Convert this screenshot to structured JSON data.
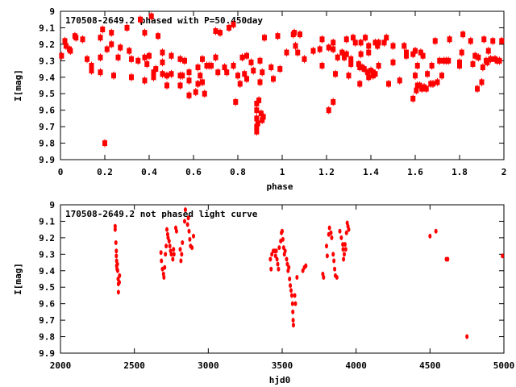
{
  "colors": {
    "marker": "#ff0000",
    "axis": "#000000"
  },
  "chart_data": [
    {
      "type": "scatter",
      "title": "170508-2649.2 phased with P=50.450day",
      "xlabel": "phase",
      "ylabel": "I[mag]",
      "xlim": [
        0,
        2
      ],
      "ylim": [
        9,
        9.9
      ],
      "y_inverted": true,
      "grid": false,
      "xticks": [
        "0",
        "0.2",
        "0.4",
        "0.6",
        "0.8",
        "1",
        "1.2",
        "1.4",
        "1.6",
        "1.8",
        "2"
      ],
      "yticks": [
        "9",
        "9.1",
        "9.2",
        "9.3",
        "9.4",
        "9.5",
        "9.6",
        "9.7",
        "9.8",
        "9.9"
      ],
      "points": [
        [
          0.005,
          9.27
        ],
        [
          0.02,
          9.18
        ],
        [
          0.025,
          9.21
        ],
        [
          0.04,
          9.23
        ],
        [
          0.045,
          9.24
        ],
        [
          0.065,
          9.15
        ],
        [
          0.07,
          9.16
        ],
        [
          0.1,
          9.17
        ],
        [
          0.12,
          9.29
        ],
        [
          0.14,
          9.33
        ],
        [
          0.14,
          9.36
        ],
        [
          0.18,
          9.28
        ],
        [
          0.18,
          9.16
        ],
        [
          0.18,
          9.37
        ],
        [
          0.19,
          9.11
        ],
        [
          0.2,
          9.8
        ],
        [
          0.21,
          9.23
        ],
        [
          0.23,
          9.13
        ],
        [
          0.23,
          9.2
        ],
        [
          0.24,
          9.39
        ],
        [
          0.26,
          9.28
        ],
        [
          0.27,
          9.22
        ],
        [
          0.3,
          9.1
        ],
        [
          0.31,
          9.24
        ],
        [
          0.32,
          9.4
        ],
        [
          0.32,
          9.29
        ],
        [
          0.35,
          9.3
        ],
        [
          0.36,
          9.05
        ],
        [
          0.38,
          9.42
        ],
        [
          0.38,
          9.28
        ],
        [
          0.38,
          9.13
        ],
        [
          0.39,
          9.32
        ],
        [
          0.4,
          9.27
        ],
        [
          0.41,
          9.03
        ],
        [
          0.42,
          9.37
        ],
        [
          0.42,
          9.4
        ],
        [
          0.43,
          9.35
        ],
        [
          0.44,
          9.15
        ],
        [
          0.46,
          9.31
        ],
        [
          0.46,
          9.25
        ],
        [
          0.46,
          9.38
        ],
        [
          0.48,
          9.39
        ],
        [
          0.48,
          9.45
        ],
        [
          0.5,
          9.27
        ],
        [
          0.5,
          9.38
        ],
        [
          0.54,
          9.29
        ],
        [
          0.54,
          9.39
        ],
        [
          0.54,
          9.45
        ],
        [
          0.55,
          9.39
        ],
        [
          0.56,
          9.3
        ],
        [
          0.58,
          9.37
        ],
        [
          0.58,
          9.51
        ],
        [
          0.58,
          9.42
        ],
        [
          0.61,
          9.49
        ],
        [
          0.62,
          9.34
        ],
        [
          0.62,
          9.44
        ],
        [
          0.63,
          9.39
        ],
        [
          0.64,
          9.29
        ],
        [
          0.64,
          9.43
        ],
        [
          0.65,
          9.5
        ],
        [
          0.66,
          9.33
        ],
        [
          0.67,
          9.33
        ],
        [
          0.68,
          9.33
        ],
        [
          0.7,
          9.12
        ],
        [
          0.7,
          9.28
        ],
        [
          0.71,
          9.37
        ],
        [
          0.72,
          9.13
        ],
        [
          0.74,
          9.34
        ],
        [
          0.75,
          9.37
        ],
        [
          0.76,
          9.1
        ],
        [
          0.78,
          9.33
        ],
        [
          0.78,
          9.08
        ],
        [
          0.79,
          9.55
        ],
        [
          0.8,
          9.39
        ],
        [
          0.81,
          9.44
        ],
        [
          0.82,
          9.28
        ],
        [
          0.83,
          9.38
        ],
        [
          0.84,
          9.27
        ],
        [
          0.84,
          9.41
        ],
        [
          0.86,
          9.31
        ],
        [
          0.87,
          9.36
        ],
        [
          0.885,
          9.56
        ],
        [
          0.885,
          9.6
        ],
        [
          0.885,
          9.65
        ],
        [
          0.885,
          9.7
        ],
        [
          0.885,
          9.73
        ],
        [
          0.89,
          9.68
        ],
        [
          0.895,
          9.54
        ],
        [
          0.9,
          9.3
        ],
        [
          0.9,
          9.43
        ],
        [
          0.905,
          9.62
        ],
        [
          0.91,
          9.66
        ],
        [
          0.91,
          9.37
        ],
        [
          0.915,
          9.64
        ],
        [
          0.92,
          9.16
        ],
        [
          0.95,
          9.34
        ],
        [
          0.96,
          9.41
        ],
        [
          0.98,
          9.15
        ],
        [
          0.99,
          9.35
        ],
        [
          1.02,
          9.25
        ],
        [
          1.05,
          9.14
        ],
        [
          1.055,
          9.13
        ],
        [
          1.06,
          9.21
        ],
        [
          1.07,
          9.25
        ],
        [
          1.08,
          9.14
        ],
        [
          1.1,
          9.29
        ],
        [
          1.14,
          9.24
        ],
        [
          1.17,
          9.23
        ],
        [
          1.18,
          9.17
        ],
        [
          1.18,
          9.33
        ],
        [
          1.21,
          9.22
        ],
        [
          1.21,
          9.6
        ],
        [
          1.23,
          9.19
        ],
        [
          1.23,
          9.23
        ],
        [
          1.23,
          9.55
        ],
        [
          1.24,
          9.38
        ],
        [
          1.25,
          9.28
        ],
        [
          1.27,
          9.25
        ],
        [
          1.28,
          9.28
        ],
        [
          1.29,
          9.17
        ],
        [
          1.29,
          9.26
        ],
        [
          1.3,
          9.39
        ],
        [
          1.31,
          9.29
        ],
        [
          1.31,
          9.32
        ],
        [
          1.32,
          9.16
        ],
        [
          1.33,
          9.19
        ],
        [
          1.345,
          9.32
        ],
        [
          1.35,
          9.44
        ],
        [
          1.35,
          9.34
        ],
        [
          1.355,
          9.19
        ],
        [
          1.355,
          9.26
        ],
        [
          1.36,
          9.34
        ],
        [
          1.37,
          9.35
        ],
        [
          1.375,
          9.16
        ],
        [
          1.385,
          9.37
        ],
        [
          1.39,
          9.4
        ],
        [
          1.39,
          9.21
        ],
        [
          1.39,
          9.25
        ],
        [
          1.4,
          9.36
        ],
        [
          1.41,
          9.39
        ],
        [
          1.41,
          9.37
        ],
        [
          1.42,
          9.19
        ],
        [
          1.42,
          9.38
        ],
        [
          1.43,
          9.21
        ],
        [
          1.435,
          9.19
        ],
        [
          1.435,
          9.33
        ],
        [
          1.46,
          9.19
        ],
        [
          1.47,
          9.16
        ],
        [
          1.48,
          9.44
        ],
        [
          1.5,
          9.21
        ],
        [
          1.5,
          9.31
        ],
        [
          1.53,
          9.42
        ],
        [
          1.55,
          9.21
        ],
        [
          1.56,
          9.25
        ],
        [
          1.56,
          9.27
        ],
        [
          1.59,
          9.53
        ],
        [
          1.59,
          9.26
        ],
        [
          1.6,
          9.39
        ],
        [
          1.6,
          9.24
        ],
        [
          1.605,
          9.48
        ],
        [
          1.61,
          9.45
        ],
        [
          1.61,
          9.33
        ],
        [
          1.62,
          9.45
        ],
        [
          1.625,
          9.25
        ],
        [
          1.63,
          9.47
        ],
        [
          1.635,
          9.27
        ],
        [
          1.64,
          9.46
        ],
        [
          1.65,
          9.47
        ],
        [
          1.655,
          9.38
        ],
        [
          1.67,
          9.44
        ],
        [
          1.675,
          9.33
        ],
        [
          1.68,
          9.44
        ],
        [
          1.69,
          9.18
        ],
        [
          1.7,
          9.43
        ],
        [
          1.71,
          9.3
        ],
        [
          1.72,
          9.39
        ],
        [
          1.73,
          9.3
        ],
        [
          1.74,
          9.3
        ],
        [
          1.75,
          9.3
        ],
        [
          1.755,
          9.17
        ],
        [
          1.8,
          9.31
        ],
        [
          1.8,
          9.33
        ],
        [
          1.81,
          9.25
        ],
        [
          1.815,
          9.14
        ],
        [
          1.85,
          9.18
        ],
        [
          1.86,
          9.32
        ],
        [
          1.87,
          9.27
        ],
        [
          1.88,
          9.47
        ],
        [
          1.885,
          9.28
        ],
        [
          1.9,
          9.43
        ],
        [
          1.905,
          9.34
        ],
        [
          1.91,
          9.17
        ],
        [
          1.92,
          9.3
        ],
        [
          1.925,
          9.31
        ],
        [
          1.93,
          9.24
        ],
        [
          1.94,
          9.29
        ],
        [
          1.95,
          9.18
        ],
        [
          1.96,
          9.29
        ],
        [
          1.97,
          9.3
        ],
        [
          1.98,
          9.3
        ],
        [
          1.99,
          9.18
        ]
      ]
    },
    {
      "type": "scatter",
      "title": "170508-2649.2 not phased light curve",
      "xlabel": "hjd0",
      "ylabel": "I[mag]",
      "xlim": [
        2000,
        5000
      ],
      "ylim": [
        9,
        9.9
      ],
      "y_inverted": true,
      "grid": false,
      "xticks": [
        "2000",
        "2500",
        "3000",
        "3500",
        "4000",
        "4500",
        "5000"
      ],
      "yticks": [
        "9",
        "9.1",
        "9.2",
        "9.3",
        "9.4",
        "9.5",
        "9.6",
        "9.7",
        "9.8",
        "9.9"
      ],
      "points": [
        [
          2370,
          9.13
        ],
        [
          2370,
          9.15
        ],
        [
          2375,
          9.23
        ],
        [
          2378,
          9.28
        ],
        [
          2378,
          9.31
        ],
        [
          2380,
          9.34
        ],
        [
          2380,
          9.37
        ],
        [
          2383,
          9.39
        ],
        [
          2385,
          9.36
        ],
        [
          2387,
          9.4
        ],
        [
          2390,
          9.45
        ],
        [
          2392,
          9.48
        ],
        [
          2392,
          9.53
        ],
        [
          2398,
          9.47
        ],
        [
          2400,
          9.43
        ],
        [
          2680,
          9.29
        ],
        [
          2683,
          9.34
        ],
        [
          2690,
          9.39
        ],
        [
          2697,
          9.42
        ],
        [
          2700,
          9.44
        ],
        [
          2705,
          9.38
        ],
        [
          2710,
          9.3
        ],
        [
          2715,
          9.25
        ],
        [
          2720,
          9.15
        ],
        [
          2725,
          9.18
        ],
        [
          2728,
          9.2
        ],
        [
          2735,
          9.22
        ],
        [
          2740,
          9.25
        ],
        [
          2745,
          9.28
        ],
        [
          2750,
          9.3
        ],
        [
          2760,
          9.33
        ],
        [
          2765,
          9.27
        ],
        [
          2768,
          9.3
        ],
        [
          2780,
          9.14
        ],
        [
          2785,
          9.16
        ],
        [
          2810,
          9.27
        ],
        [
          2815,
          9.34
        ],
        [
          2820,
          9.3
        ],
        [
          2825,
          9.23
        ],
        [
          2840,
          9.1
        ],
        [
          2845,
          9.03
        ],
        [
          2860,
          9.12
        ],
        [
          2865,
          9.08
        ],
        [
          2870,
          9.16
        ],
        [
          2875,
          9.21
        ],
        [
          2880,
          9.25
        ],
        [
          2890,
          9.26
        ],
        [
          2900,
          9.19
        ],
        [
          3420,
          9.33
        ],
        [
          3425,
          9.39
        ],
        [
          3430,
          9.3
        ],
        [
          3440,
          9.28
        ],
        [
          3450,
          9.28
        ],
        [
          3455,
          9.31
        ],
        [
          3460,
          9.28
        ],
        [
          3465,
          9.33
        ],
        [
          3470,
          9.36
        ],
        [
          3475,
          9.39
        ],
        [
          3480,
          9.26
        ],
        [
          3490,
          9.22
        ],
        [
          3495,
          9.17
        ],
        [
          3500,
          9.16
        ],
        [
          3505,
          9.21
        ],
        [
          3510,
          9.26
        ],
        [
          3515,
          9.3
        ],
        [
          3520,
          9.28
        ],
        [
          3530,
          9.33
        ],
        [
          3535,
          9.36
        ],
        [
          3540,
          9.4
        ],
        [
          3545,
          9.38
        ],
        [
          3550,
          9.45
        ],
        [
          3555,
          9.49
        ],
        [
          3560,
          9.52
        ],
        [
          3565,
          9.55
        ],
        [
          3570,
          9.6
        ],
        [
          3572,
          9.65
        ],
        [
          3574,
          9.7
        ],
        [
          3576,
          9.73
        ],
        [
          3585,
          9.55
        ],
        [
          3590,
          9.6
        ],
        [
          3600,
          9.44
        ],
        [
          3640,
          9.4
        ],
        [
          3650,
          9.38
        ],
        [
          3660,
          9.37
        ],
        [
          3775,
          9.42
        ],
        [
          3780,
          9.44
        ],
        [
          3800,
          9.25
        ],
        [
          3805,
          9.31
        ],
        [
          3815,
          9.18
        ],
        [
          3820,
          9.14
        ],
        [
          3830,
          9.17
        ],
        [
          3835,
          9.2
        ],
        [
          3845,
          9.3
        ],
        [
          3850,
          9.34
        ],
        [
          3855,
          9.39
        ],
        [
          3860,
          9.43
        ],
        [
          3870,
          9.44
        ],
        [
          3890,
          9.16
        ],
        [
          3900,
          9.2
        ],
        [
          3910,
          9.24
        ],
        [
          3912,
          9.27
        ],
        [
          3915,
          9.33
        ],
        [
          3920,
          9.3
        ],
        [
          3925,
          9.24
        ],
        [
          3930,
          9.27
        ],
        [
          3935,
          9.17
        ],
        [
          3940,
          9.11
        ],
        [
          3945,
          9.13
        ],
        [
          3950,
          9.15
        ],
        [
          4500,
          9.19
        ],
        [
          4540,
          9.16
        ],
        [
          4610,
          9.33
        ],
        [
          4620,
          9.33
        ],
        [
          4750,
          9.8
        ],
        [
          4990,
          9.31
        ]
      ]
    }
  ]
}
